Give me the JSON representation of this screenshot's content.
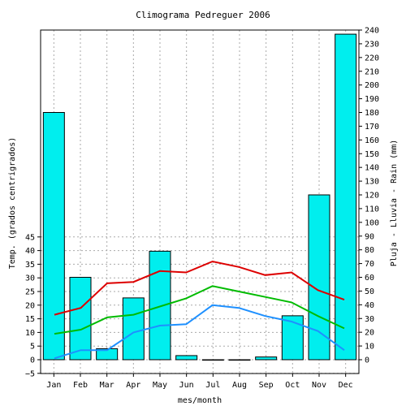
{
  "chart_data": {
    "type": "bar+line",
    "title": "Climograma Pedreguer 2006",
    "xlabel": "mes/month",
    "ylabel_left": "Temp. (grados centrigrados)",
    "ylabel_right": "Pluja - Lluvia - Rain (mm)",
    "categories": [
      "Jan",
      "Feb",
      "Mar",
      "Apr",
      "May",
      "Jun",
      "Jul",
      "Aug",
      "Sep",
      "Oct",
      "Nov",
      "Dec"
    ],
    "left_axis": {
      "range": [
        -5,
        45
      ],
      "ticks": [
        -5,
        0,
        5,
        10,
        15,
        20,
        25,
        30,
        35,
        40,
        45
      ]
    },
    "right_axis": {
      "range": [
        0,
        240
      ],
      "step": 10
    },
    "grid": true,
    "rain_mm": [
      180,
      60,
      8,
      45,
      79,
      3,
      0,
      0,
      2,
      32,
      120,
      237
    ],
    "temp_max": [
      16.5,
      19,
      28,
      28.5,
      32.5,
      32,
      36,
      34,
      31,
      32,
      25.5,
      22
    ],
    "temp_mean": [
      9.5,
      11,
      15.5,
      16.5,
      19.5,
      22.5,
      27,
      25,
      23,
      21,
      16,
      11.5
    ],
    "temp_min": [
      0.5,
      3.5,
      3.5,
      10,
      12.5,
      13,
      20,
      19,
      16,
      14,
      10.5,
      3.5
    ],
    "colors": {
      "bar": "#00eeee",
      "temp_max": "#dd0000",
      "temp_mean": "#00bb00",
      "temp_min": "#1e90ff",
      "grid": "#aaaaaa"
    }
  }
}
